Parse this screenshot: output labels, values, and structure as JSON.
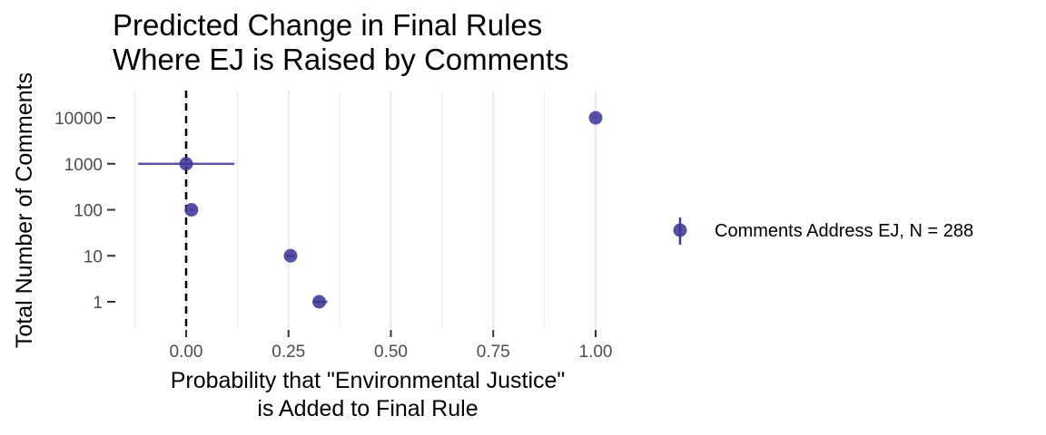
{
  "chart_data": {
    "type": "scatter",
    "title_lines": [
      "Predicted Change in Final Rules",
      "Where EJ is Raised by Comments"
    ],
    "xlabel_lines": [
      "Probability that \"Environmental Justice\"",
      "is Added to Final Rule"
    ],
    "ylabel": "Total Number of Comments",
    "xlim": [
      -0.13,
      1.02
    ],
    "x_ticks": [
      0.0,
      0.25,
      0.5,
      0.75,
      1.0
    ],
    "x_tick_labels": [
      "0.00",
      "0.25",
      "0.50",
      "0.75",
      "1.00"
    ],
    "categories": [
      "1",
      "10",
      "100",
      "1000",
      "10000"
    ],
    "reference_line_x": 0,
    "grid": "vertical",
    "legend_position": "right",
    "series": [
      {
        "name": "Comments Address EJ, N = 288",
        "color": "#3f3799",
        "points": [
          {
            "y": "1",
            "x": 0.325,
            "lo": 0.31,
            "hi": 0.345
          },
          {
            "y": "10",
            "x": 0.255,
            "lo": 0.245,
            "hi": 0.265
          },
          {
            "y": "100",
            "x": 0.013,
            "lo": 0.008,
            "hi": 0.018
          },
          {
            "y": "1000",
            "x": 0.0,
            "lo": -0.117,
            "hi": 0.118
          },
          {
            "y": "10000",
            "x": 1.0,
            "lo": 0.998,
            "hi": 1.002
          }
        ]
      }
    ]
  }
}
